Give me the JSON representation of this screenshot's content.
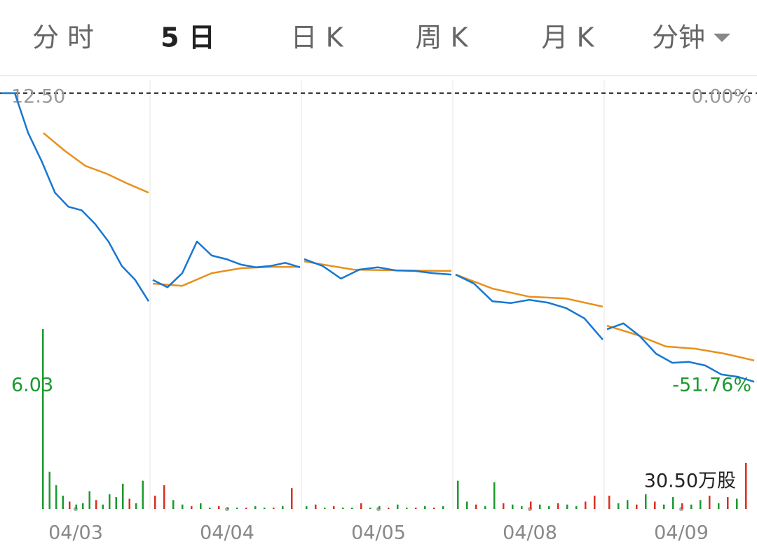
{
  "tabs": [
    "分 时",
    "5 日",
    "日 K",
    "周 K",
    "月 K",
    "分钟"
  ],
  "active_tab": 1,
  "chart_data": {
    "type": "line",
    "ylim": [
      6.03,
      12.5
    ],
    "yticks": [
      {
        "value": 12.5,
        "label": "12.50"
      },
      6.03
    ],
    "y2lim": [
      -51.76,
      0
    ],
    "y2ticks": [
      {
        "value": 0,
        "label": "0.00%"
      },
      {
        "value": -51.76,
        "label": "-51.76%"
      }
    ],
    "volume_ticks": [
      {
        "value": 30.5,
        "label": "30.50万股"
      }
    ],
    "price_color": "#1677d2",
    "avg_color": "#e8901c",
    "up_color": "#d8311f",
    "down_color": "#1a9a2e",
    "days": [
      {
        "label": "04/03",
        "price": [
          12.5,
          12.5,
          11.62,
          11.0,
          10.3,
          9.99,
          9.91,
          9.61,
          9.22,
          8.68,
          8.37,
          7.9
        ],
        "avg": [
          null,
          null,
          11.62,
          11.23,
          10.89,
          10.72,
          10.5,
          10.3
        ],
        "volume": [
          120.6,
          25,
          16,
          9,
          5,
          3,
          4,
          12,
          6,
          3,
          10,
          8,
          17,
          7,
          4,
          19
        ],
        "volume_up": [
          false,
          false,
          false,
          false,
          true,
          false,
          false,
          false,
          true,
          false,
          false,
          false,
          false,
          true,
          false,
          false
        ]
      },
      {
        "label": "04/04",
        "price": [
          8.37,
          8.21,
          8.52,
          9.22,
          8.91,
          8.83,
          8.71,
          8.65,
          8.68,
          8.75,
          8.65
        ],
        "avg": [
          8.29,
          8.24,
          8.52,
          8.63,
          8.66,
          8.66
        ],
        "volume": [
          9,
          16,
          6,
          3,
          2,
          4,
          1,
          2,
          1,
          1,
          1,
          2,
          1,
          1,
          2,
          14
        ],
        "volume_up": [
          true,
          true,
          false,
          false,
          true,
          false,
          false,
          true,
          false,
          false,
          true,
          false,
          false,
          true,
          false,
          true
        ]
      },
      {
        "label": "04/05",
        "price": [
          8.83,
          8.68,
          8.4,
          8.6,
          8.65,
          8.58,
          8.57,
          8.52,
          8.49
        ],
        "avg": [
          8.78,
          8.6,
          8.58,
          8.57
        ],
        "volume": [
          2,
          3,
          1,
          2,
          1,
          1,
          4,
          1,
          2,
          1,
          3,
          1,
          1,
          2,
          1,
          2
        ],
        "volume_up": [
          false,
          true,
          false,
          true,
          false,
          false,
          true,
          false,
          false,
          true,
          false,
          false,
          true,
          false,
          true,
          false
        ]
      },
      {
        "label": "04/08",
        "price": [
          8.49,
          8.29,
          7.9,
          7.86,
          7.93,
          7.87,
          7.75,
          7.52,
          7.05
        ],
        "avg": [
          8.49,
          8.18,
          8.0,
          7.96,
          7.78
        ],
        "volume": [
          19,
          5,
          3,
          2,
          18,
          4,
          3,
          2,
          5,
          3,
          2,
          4,
          3,
          2,
          5,
          9
        ],
        "volume_up": [
          false,
          false,
          true,
          false,
          false,
          true,
          false,
          false,
          true,
          false,
          false,
          true,
          false,
          false,
          true,
          true
        ]
      },
      {
        "label": "04/09",
        "price": [
          7.28,
          7.41,
          7.13,
          6.74,
          6.54,
          6.56,
          6.48,
          6.28,
          6.23,
          6.12
        ],
        "avg": [
          7.36,
          7.16,
          6.9,
          6.85,
          6.74,
          6.59
        ],
        "volume": [
          9,
          4,
          6,
          3,
          10,
          5,
          3,
          8,
          4,
          3,
          6,
          9,
          4,
          8,
          7,
          31
        ],
        "volume_up": [
          true,
          false,
          false,
          true,
          false,
          true,
          false,
          false,
          true,
          false,
          false,
          true,
          false,
          true,
          false,
          true
        ]
      }
    ]
  }
}
